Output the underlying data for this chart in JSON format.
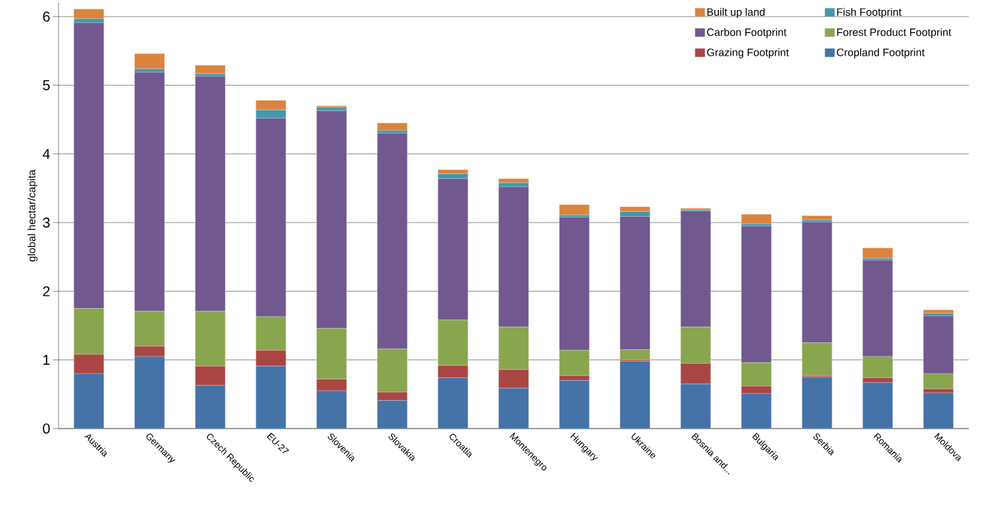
{
  "chart_data": {
    "type": "bar",
    "stacked": true,
    "ylabel": "global hectar/capita",
    "categories": [
      "Austria",
      "Germany",
      "Czech Republic",
      "EU-27",
      "Slovenia",
      "Slovakia",
      "Croatia",
      "Montenegro",
      "Hungary",
      "Ukraine",
      "Bosnia and...",
      "Bulgaria",
      "Serbia",
      "Romania",
      "Moldova"
    ],
    "series": [
      {
        "name": "Cropland Footprint",
        "color": "#4572a7",
        "values": [
          0.8,
          1.05,
          0.63,
          0.91,
          0.55,
          0.41,
          0.74,
          0.59,
          0.7,
          0.98,
          0.65,
          0.51,
          0.75,
          0.67,
          0.52
        ]
      },
      {
        "name": "Grazing Footprint",
        "color": "#aa4643",
        "values": [
          0.28,
          0.15,
          0.28,
          0.23,
          0.17,
          0.12,
          0.18,
          0.27,
          0.07,
          0.02,
          0.3,
          0.11,
          0.02,
          0.07,
          0.06
        ]
      },
      {
        "name": "Forest Product Footprint",
        "color": "#89a54e",
        "values": [
          0.67,
          0.51,
          0.8,
          0.49,
          0.74,
          0.63,
          0.66,
          0.62,
          0.37,
          0.15,
          0.53,
          0.34,
          0.48,
          0.31,
          0.22
        ]
      },
      {
        "name": "Carbon Footprint",
        "color": "#71588f",
        "values": [
          4.16,
          3.48,
          3.42,
          2.89,
          3.17,
          3.14,
          2.06,
          2.04,
          1.94,
          1.94,
          1.69,
          1.99,
          1.76,
          1.4,
          0.84
        ]
      },
      {
        "name": "Fish Footprint",
        "color": "#4198af",
        "values": [
          0.06,
          0.05,
          0.04,
          0.12,
          0.05,
          0.04,
          0.07,
          0.06,
          0.03,
          0.07,
          0.02,
          0.03,
          0.03,
          0.03,
          0.04
        ]
      },
      {
        "name": "Built up land",
        "color": "#db843d",
        "values": [
          0.14,
          0.22,
          0.12,
          0.14,
          0.02,
          0.11,
          0.06,
          0.06,
          0.15,
          0.07,
          0.02,
          0.14,
          0.06,
          0.15,
          0.05
        ]
      }
    ],
    "ylim": [
      0,
      6.2
    ],
    "yticks": [
      0,
      1,
      2,
      3,
      4,
      5,
      6
    ],
    "grid": "y",
    "legend": "top right"
  }
}
